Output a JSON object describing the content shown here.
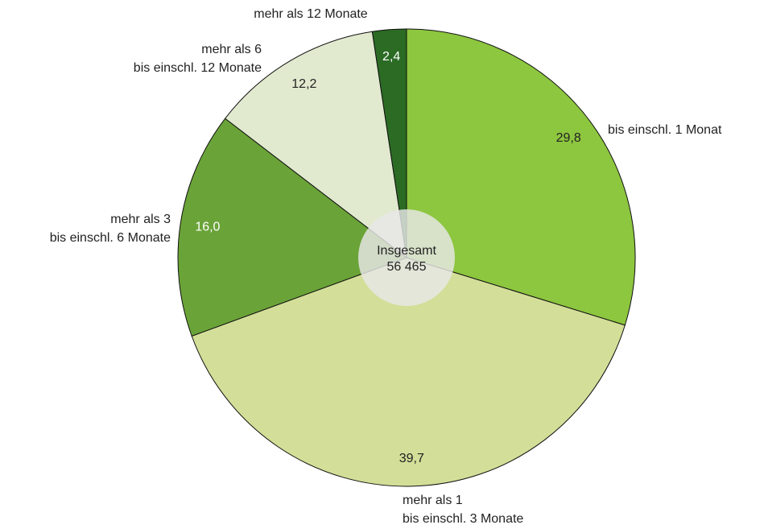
{
  "chart_data": {
    "type": "pie",
    "categories": [
      [
        "bis einschl. 1 Monat"
      ],
      [
        "mehr als 1",
        "bis einschl. 3 Monate"
      ],
      [
        "mehr als 3",
        "bis einschl. 6 Monate"
      ],
      [
        "mehr als 6",
        "bis einschl. 12 Monate"
      ],
      [
        "mehr als 12 Monate"
      ]
    ],
    "values": [
      29.8,
      39.7,
      16.0,
      12.2,
      2.4
    ],
    "value_labels": [
      "29,8",
      "39,7",
      "16,0",
      "12,2",
      "2,4"
    ],
    "colors": [
      "#8dc63f",
      "#d3de98",
      "#6aa338",
      "#e1eacf",
      "#2b6b24"
    ],
    "center_label": "Insgesamt",
    "total": "56 465"
  }
}
